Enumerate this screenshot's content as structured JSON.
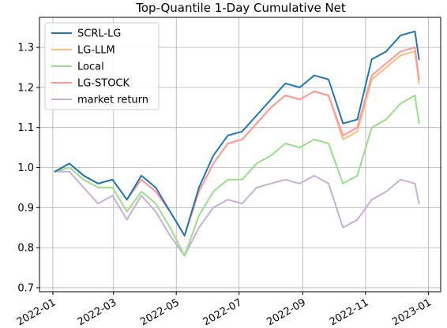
{
  "chart_data": {
    "type": "line",
    "title": "Top-Quantile 1-Day Cumulative Net",
    "xlabel": "",
    "ylabel": "",
    "x_ticks": [
      "2022-01",
      "2022-03",
      "2022-05",
      "2022-07",
      "2022-09",
      "2022-11",
      "2023-01"
    ],
    "y_ticks": [
      "0.7",
      "0.8",
      "0.9",
      "1.0",
      "1.1",
      "1.2",
      "1.3"
    ],
    "ylim": [
      0.69,
      1.375
    ],
    "xlim": [
      "2021-12-19",
      "2023-01-13"
    ],
    "grid": true,
    "legend_position": "upper-left",
    "dates": [
      "2022-01-03",
      "2022-01-17",
      "2022-01-31",
      "2022-02-14",
      "2022-02-28",
      "2022-03-14",
      "2022-03-28",
      "2022-04-11",
      "2022-04-25",
      "2022-05-09",
      "2022-05-23",
      "2022-06-06",
      "2022-06-20",
      "2022-07-04",
      "2022-07-18",
      "2022-08-01",
      "2022-08-15",
      "2022-08-29",
      "2022-09-12",
      "2022-09-26",
      "2022-10-10",
      "2022-10-24",
      "2022-11-07",
      "2022-11-21",
      "2022-12-05",
      "2022-12-19",
      "2022-12-23"
    ],
    "series": [
      {
        "name": "SCRL-LG",
        "color": "#1f77b4",
        "values": [
          0.99,
          1.01,
          0.98,
          0.96,
          0.97,
          0.92,
          0.98,
          0.95,
          0.89,
          0.83,
          0.95,
          1.03,
          1.08,
          1.09,
          1.13,
          1.17,
          1.21,
          1.2,
          1.23,
          1.22,
          1.11,
          1.12,
          1.27,
          1.29,
          1.33,
          1.34,
          1.27
        ]
      },
      {
        "name": "LG-LLM",
        "color": "#ffbb78",
        "values": [
          0.99,
          1.01,
          0.98,
          0.96,
          0.97,
          0.92,
          0.97,
          0.94,
          0.89,
          0.83,
          0.94,
          1.01,
          1.06,
          1.07,
          1.11,
          1.15,
          1.18,
          1.17,
          1.19,
          1.18,
          1.07,
          1.09,
          1.22,
          1.25,
          1.28,
          1.29,
          1.21
        ]
      },
      {
        "name": "Local",
        "color": "#98df8a",
        "values": [
          0.99,
          1.0,
          0.97,
          0.95,
          0.95,
          0.89,
          0.94,
          0.91,
          0.85,
          0.78,
          0.88,
          0.94,
          0.97,
          0.97,
          1.01,
          1.03,
          1.06,
          1.05,
          1.07,
          1.06,
          0.96,
          0.98,
          1.1,
          1.12,
          1.16,
          1.18,
          1.11
        ]
      },
      {
        "name": "LG-STOCK",
        "color": "#ff9896",
        "values": [
          0.99,
          1.01,
          0.98,
          0.96,
          0.97,
          0.92,
          0.97,
          0.94,
          0.89,
          0.83,
          0.94,
          1.01,
          1.06,
          1.07,
          1.11,
          1.15,
          1.18,
          1.17,
          1.19,
          1.18,
          1.08,
          1.1,
          1.23,
          1.26,
          1.29,
          1.3,
          1.22
        ]
      },
      {
        "name": "market return",
        "color": "#c5b0d5",
        "values": [
          0.99,
          0.99,
          0.95,
          0.91,
          0.93,
          0.87,
          0.93,
          0.89,
          0.83,
          0.78,
          0.85,
          0.9,
          0.92,
          0.91,
          0.95,
          0.96,
          0.97,
          0.96,
          0.98,
          0.96,
          0.85,
          0.87,
          0.92,
          0.94,
          0.97,
          0.96,
          0.91
        ]
      }
    ]
  }
}
